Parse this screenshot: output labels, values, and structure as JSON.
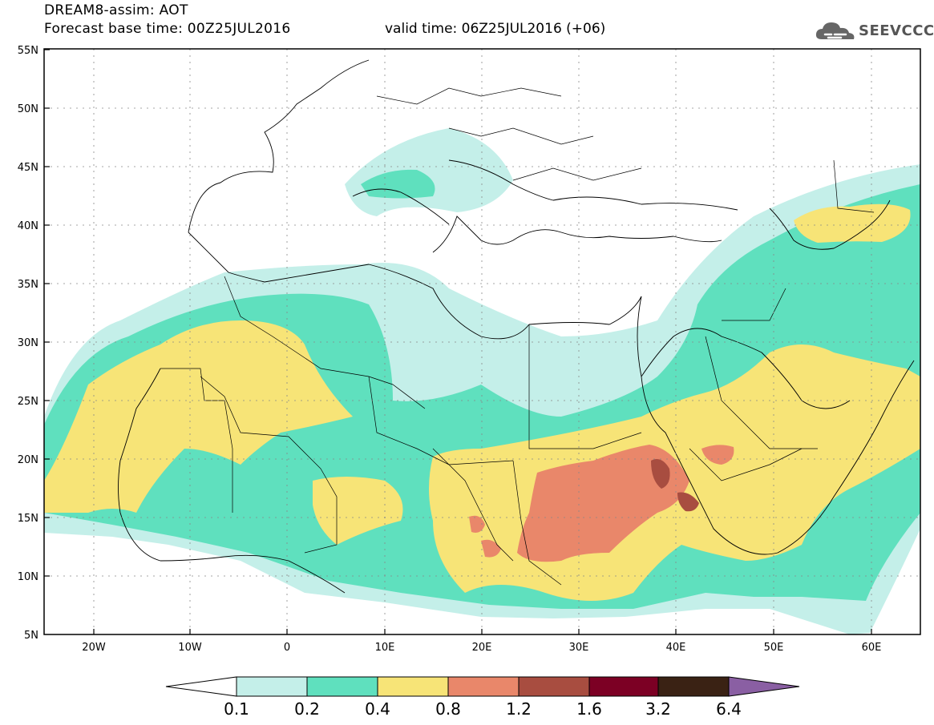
{
  "header": {
    "title_line1": "DREAM8-assim: AOT",
    "title_line2": "Forecast base time: 00Z25JUL2016",
    "valid_time": "valid time: 06Z25JUL2016 (+06)",
    "logo_text": "SEEVCCC"
  },
  "map": {
    "lat_labels": [
      "55N",
      "50N",
      "45N",
      "40N",
      "35N",
      "30N",
      "25N",
      "20N",
      "15N",
      "10N",
      "5N"
    ],
    "lon_labels": [
      "20W",
      "10W",
      "0",
      "10E",
      "20E",
      "30E",
      "40E",
      "50E",
      "60E"
    ]
  },
  "colorbar": {
    "labels": [
      "0.1",
      "0.2",
      "0.4",
      "0.8",
      "1.2",
      "1.6",
      "3.2",
      "6.4"
    ],
    "colors": [
      "#c4efe9",
      "#5fe0be",
      "#f7e477",
      "#e9876a",
      "#a84d40",
      "#7c0024",
      "#3a2214",
      "#8a5fa3"
    ]
  }
}
